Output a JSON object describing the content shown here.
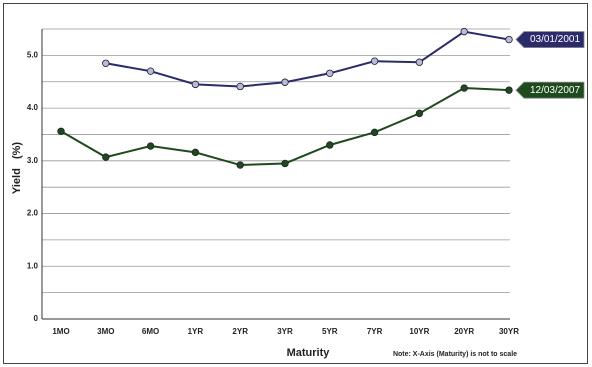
{
  "chart_data": {
    "type": "line",
    "categories": [
      "1MO",
      "3MO",
      "6MO",
      "1YR",
      "2YR",
      "3YR",
      "5YR",
      "7YR",
      "10YR",
      "20YR",
      "30YR"
    ],
    "series": [
      {
        "name": "03/01/2001",
        "color": "#2b2b6b",
        "marker_color": "#b8b8e0",
        "values": [
          null,
          4.85,
          4.7,
          4.45,
          4.41,
          4.49,
          4.66,
          4.89,
          4.87,
          5.45,
          5.3
        ]
      },
      {
        "name": "12/03/2007",
        "color": "#1e4a1e",
        "marker_color": "#1e4a1e",
        "values": [
          3.56,
          3.07,
          3.28,
          3.16,
          2.92,
          2.95,
          3.3,
          3.54,
          3.9,
          4.38,
          4.34
        ]
      }
    ],
    "ylim": [
      0,
      5.5
    ],
    "yticks": [
      0,
      {
        "value": 1,
        "label": "1.0"
      },
      {
        "value": 2,
        "label": "2.0"
      },
      {
        "value": 3,
        "label": "3.0"
      },
      {
        "value": 4,
        "label": "4.0"
      },
      {
        "value": 5,
        "label": "5.0"
      }
    ],
    "minor_yticks": [
      0.5,
      1.5,
      2.5,
      3.5,
      4.5,
      5.5
    ],
    "grid": true,
    "xlabel": "Maturity",
    "ylabel": "Yield   (%)",
    "note": "Note: X-Axis (Maturity) is not to scale",
    "legend": "right"
  }
}
